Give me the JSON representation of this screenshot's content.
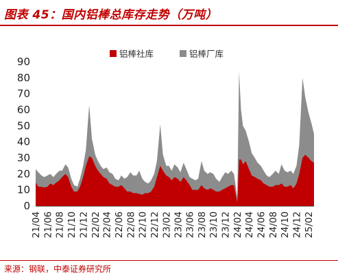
{
  "header": {
    "title": "图表 45：国内铝棒总库存走势（万吨）"
  },
  "footer": {
    "source": "来源：钢联，中泰证券研究所"
  },
  "colors": {
    "accent": "#c00000",
    "series_1": "#c00000",
    "series_2": "#8c8c8c"
  },
  "chart_data": {
    "type": "area",
    "stacked": true,
    "title": "",
    "xlabel": "",
    "ylabel": "",
    "ylim": [
      0,
      90
    ],
    "yticks": [
      0,
      10,
      20,
      30,
      40,
      50,
      60,
      70,
      80,
      90
    ],
    "grid": false,
    "legend_position": "top-center",
    "xtick_labels": [
      "21/04",
      "21/06",
      "21/08",
      "21/10",
      "21/12",
      "22/02",
      "22/04",
      "22/06",
      "22/08",
      "22/10",
      "22/12",
      "23/02",
      "23/04",
      "23/06",
      "23/08",
      "23/10",
      "23/12",
      "24/02",
      "24/04",
      "24/06",
      "24/08",
      "24/10",
      "24/12",
      "25/02"
    ],
    "x_range": [
      "2021-04",
      "2025-03"
    ],
    "series": [
      {
        "name": "铝棒社库",
        "color": "#c00000",
        "points": [
          [
            "2021-04",
            14.5
          ],
          [
            "2021-04-15",
            12
          ],
          [
            "2021-05",
            12
          ],
          [
            "2021-05-15",
            11.5
          ],
          [
            "2021-06",
            12
          ],
          [
            "2021-06-15",
            14
          ],
          [
            "2021-07",
            13
          ],
          [
            "2021-07-15",
            14.5
          ],
          [
            "2021-08",
            16
          ],
          [
            "2021-08-15",
            18
          ],
          [
            "2021-09",
            20
          ],
          [
            "2021-09-15",
            18
          ],
          [
            "2021-10",
            12
          ],
          [
            "2021-10-15",
            9
          ],
          [
            "2021-11",
            9
          ],
          [
            "2021-11-15",
            12
          ],
          [
            "2021-12",
            18
          ],
          [
            "2021-12-15",
            25
          ],
          [
            "2022-01",
            31
          ],
          [
            "2022-01-15",
            30
          ],
          [
            "2022-02",
            25
          ],
          [
            "2022-02-15",
            22
          ],
          [
            "2022-03",
            20
          ],
          [
            "2022-03-15",
            18
          ],
          [
            "2022-04",
            17
          ],
          [
            "2022-04-15",
            14
          ],
          [
            "2022-05",
            13
          ],
          [
            "2022-05-15",
            12
          ],
          [
            "2022-06",
            12
          ],
          [
            "2022-06-15",
            13
          ],
          [
            "2022-07",
            11
          ],
          [
            "2022-07-15",
            9
          ],
          [
            "2022-08",
            9
          ],
          [
            "2022-08-15",
            8
          ],
          [
            "2022-09",
            8
          ],
          [
            "2022-09-15",
            7.5
          ],
          [
            "2022-10",
            7
          ],
          [
            "2022-10-15",
            8
          ],
          [
            "2022-11",
            8
          ],
          [
            "2022-11-15",
            9
          ],
          [
            "2022-12",
            12
          ],
          [
            "2022-12-15",
            18
          ],
          [
            "2023-01",
            25
          ],
          [
            "2023-01-15",
            22
          ],
          [
            "2023-02",
            19
          ],
          [
            "2023-02-15",
            18
          ],
          [
            "2023-03",
            16
          ],
          [
            "2023-03-15",
            18
          ],
          [
            "2023-04",
            17
          ],
          [
            "2023-04-15",
            15
          ],
          [
            "2023-05",
            18
          ],
          [
            "2023-05-15",
            16
          ],
          [
            "2023-06",
            13
          ],
          [
            "2023-06-15",
            10
          ],
          [
            "2023-07",
            10
          ],
          [
            "2023-07-15",
            10
          ],
          [
            "2023-08",
            13
          ],
          [
            "2023-08-15",
            11
          ],
          [
            "2023-09",
            10
          ],
          [
            "2023-09-15",
            11
          ],
          [
            "2023-10",
            10
          ],
          [
            "2023-10-15",
            9
          ],
          [
            "2023-11",
            9
          ],
          [
            "2023-11-15",
            10
          ],
          [
            "2023-12",
            11
          ],
          [
            "2023-12-15",
            12
          ],
          [
            "2024-01",
            13
          ],
          [
            "2024-01-15",
            13
          ],
          [
            "2024-02",
            2
          ],
          [
            "2024-02-10",
            29
          ],
          [
            "2024-02-20",
            29
          ],
          [
            "2024-03",
            26
          ],
          [
            "2024-03-15",
            28
          ],
          [
            "2024-04",
            23
          ],
          [
            "2024-04-15",
            19
          ],
          [
            "2024-05",
            18
          ],
          [
            "2024-05-15",
            17
          ],
          [
            "2024-06",
            16
          ],
          [
            "2024-06-15",
            14
          ],
          [
            "2024-07",
            13
          ],
          [
            "2024-07-15",
            12
          ],
          [
            "2024-08",
            12
          ],
          [
            "2024-08-15",
            13
          ],
          [
            "2024-09",
            13
          ],
          [
            "2024-09-15",
            14
          ],
          [
            "2024-10",
            12
          ],
          [
            "2024-10-15",
            12
          ],
          [
            "2024-11",
            13
          ],
          [
            "2024-11-15",
            11
          ],
          [
            "2024-12",
            14
          ],
          [
            "2024-12-15",
            20
          ],
          [
            "2025-01",
            30
          ],
          [
            "2025-01-15",
            32
          ],
          [
            "2025-02",
            30
          ],
          [
            "2025-02-15",
            28
          ],
          [
            "2025-03",
            27
          ]
        ]
      },
      {
        "name": "铝棒厂库",
        "color": "#8c8c8c",
        "points": [
          [
            "2021-04",
            23
          ],
          [
            "2021-04-15",
            21
          ],
          [
            "2021-05",
            19
          ],
          [
            "2021-05-15",
            18
          ],
          [
            "2021-06",
            19
          ],
          [
            "2021-06-15",
            20
          ],
          [
            "2021-07",
            18
          ],
          [
            "2021-07-15",
            20
          ],
          [
            "2021-08",
            22
          ],
          [
            "2021-08-15",
            22
          ],
          [
            "2021-09",
            26
          ],
          [
            "2021-09-15",
            24
          ],
          [
            "2021-10",
            17
          ],
          [
            "2021-10-15",
            13
          ],
          [
            "2021-11",
            12
          ],
          [
            "2021-11-15",
            17
          ],
          [
            "2021-12",
            25
          ],
          [
            "2021-12-15",
            35
          ],
          [
            "2022-01",
            63
          ],
          [
            "2022-01-15",
            42
          ],
          [
            "2022-02",
            32
          ],
          [
            "2022-02-15",
            28
          ],
          [
            "2022-03",
            25
          ],
          [
            "2022-03-15",
            23
          ],
          [
            "2022-04",
            24
          ],
          [
            "2022-04-15",
            21
          ],
          [
            "2022-05",
            20
          ],
          [
            "2022-05-15",
            17
          ],
          [
            "2022-06",
            16
          ],
          [
            "2022-06-15",
            19
          ],
          [
            "2022-07",
            17
          ],
          [
            "2022-07-15",
            18
          ],
          [
            "2022-08",
            21
          ],
          [
            "2022-08-15",
            19
          ],
          [
            "2022-09",
            19
          ],
          [
            "2022-09-15",
            22
          ],
          [
            "2022-10",
            17
          ],
          [
            "2022-10-15",
            15
          ],
          [
            "2022-11",
            14
          ],
          [
            "2022-11-15",
            16
          ],
          [
            "2022-12",
            20
          ],
          [
            "2022-12-15",
            28
          ],
          [
            "2023-01",
            51
          ],
          [
            "2023-01-15",
            32
          ],
          [
            "2023-02",
            25
          ],
          [
            "2023-02-15",
            25
          ],
          [
            "2023-03",
            22
          ],
          [
            "2023-03-15",
            26
          ],
          [
            "2023-04",
            24
          ],
          [
            "2023-04-15",
            21
          ],
          [
            "2023-05",
            27
          ],
          [
            "2023-05-15",
            23
          ],
          [
            "2023-06",
            18
          ],
          [
            "2023-06-15",
            17
          ],
          [
            "2023-07",
            16
          ],
          [
            "2023-07-15",
            17
          ],
          [
            "2023-08",
            28
          ],
          [
            "2023-08-15",
            22
          ],
          [
            "2023-09",
            20
          ],
          [
            "2023-09-15",
            21
          ],
          [
            "2023-10",
            20
          ],
          [
            "2023-10-15",
            17
          ],
          [
            "2023-11",
            15
          ],
          [
            "2023-11-15",
            18
          ],
          [
            "2023-12",
            21
          ],
          [
            "2023-12-15",
            20
          ],
          [
            "2024-01",
            22
          ],
          [
            "2024-01-15",
            20
          ],
          [
            "2024-02",
            5
          ],
          [
            "2024-02-10",
            84
          ],
          [
            "2024-02-20",
            60
          ],
          [
            "2024-03",
            50
          ],
          [
            "2024-03-15",
            47
          ],
          [
            "2024-04",
            40
          ],
          [
            "2024-04-15",
            33
          ],
          [
            "2024-05",
            30
          ],
          [
            "2024-05-15",
            27
          ],
          [
            "2024-06",
            25
          ],
          [
            "2024-06-15",
            22
          ],
          [
            "2024-07",
            19
          ],
          [
            "2024-07-15",
            18
          ],
          [
            "2024-08",
            20
          ],
          [
            "2024-08-15",
            22
          ],
          [
            "2024-09",
            20
          ],
          [
            "2024-09-15",
            26
          ],
          [
            "2024-10",
            22
          ],
          [
            "2024-10-15",
            21
          ],
          [
            "2024-11",
            22
          ],
          [
            "2024-11-15",
            20
          ],
          [
            "2024-12",
            25
          ],
          [
            "2024-12-15",
            38
          ],
          [
            "2025-01",
            80
          ],
          [
            "2025-01-15",
            68
          ],
          [
            "2025-02",
            58
          ],
          [
            "2025-02-15",
            52
          ],
          [
            "2025-03",
            45
          ]
        ]
      }
    ]
  }
}
